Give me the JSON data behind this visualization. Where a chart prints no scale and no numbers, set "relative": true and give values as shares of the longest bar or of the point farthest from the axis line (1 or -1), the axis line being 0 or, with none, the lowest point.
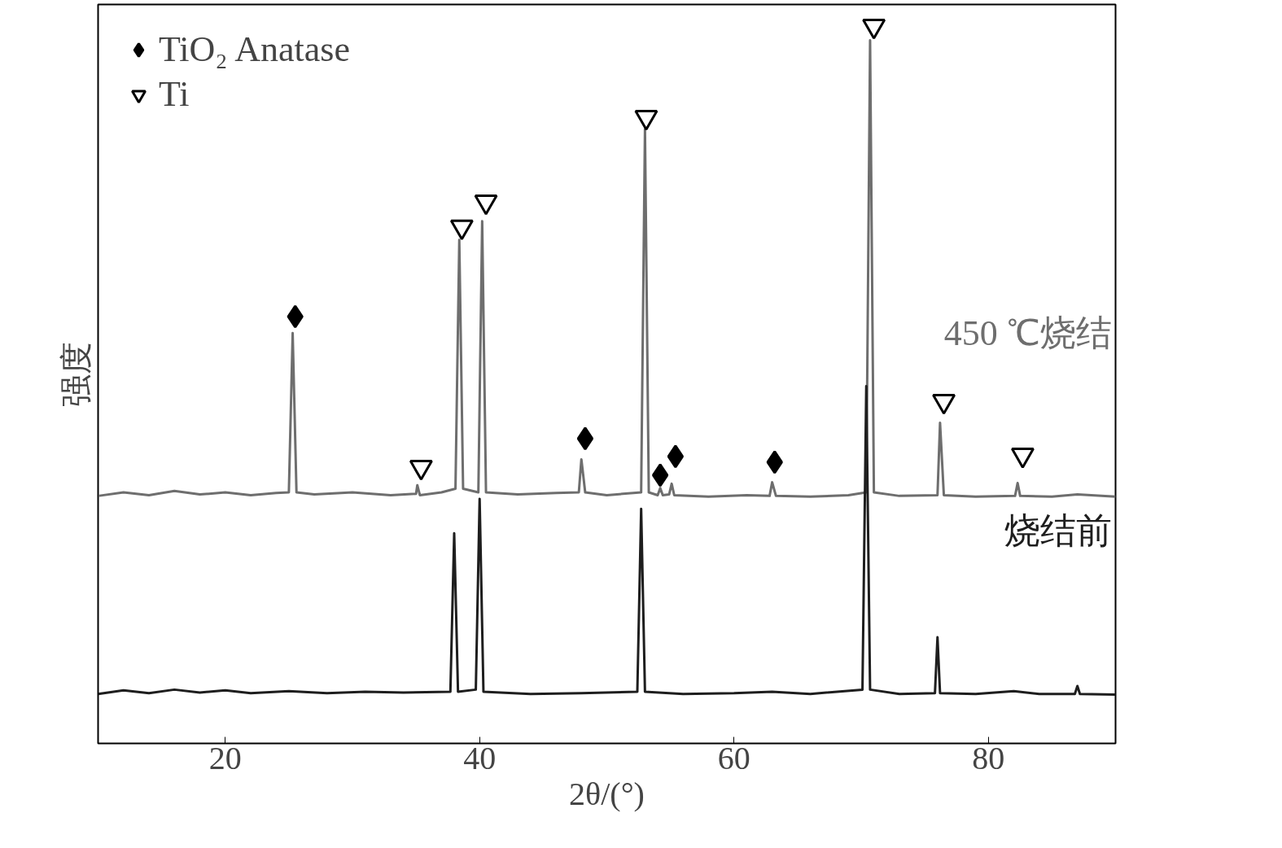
{
  "chart_data": {
    "type": "line",
    "relative": true,
    "xlabel": "2θ/(°)",
    "ylabel": "强度",
    "xlim": [
      10,
      90
    ],
    "xticks": [
      20,
      40,
      60,
      80
    ],
    "tick_labels": "x",
    "grid": false,
    "legend": "top left",
    "line_style": "solid",
    "series": [
      {
        "name": "450 ℃烧结",
        "color": "#6e6e6e",
        "x": [
          10,
          12,
          14,
          16,
          18,
          20,
          22,
          24,
          25.0,
          25.3,
          25.6,
          27,
          30,
          33,
          35.0,
          35.1,
          35.3,
          37,
          38.1,
          38.4,
          38.7,
          39.9,
          40.2,
          40.5,
          43,
          46,
          47.8,
          48.0,
          48.3,
          50,
          52.7,
          53.0,
          53.3,
          54.0,
          54.2,
          54.4,
          54.9,
          55.1,
          55.3,
          58,
          61,
          62.8,
          63.0,
          63.3,
          66,
          69,
          70.4,
          70.7,
          71.0,
          73,
          76.0,
          76.2,
          76.5,
          79,
          82.1,
          82.3,
          82.5,
          85,
          87,
          90
        ],
        "values": [
          0.345,
          0.35,
          0.346,
          0.352,
          0.347,
          0.35,
          0.346,
          0.349,
          0.35,
          0.572,
          0.35,
          0.347,
          0.35,
          0.346,
          0.348,
          0.36,
          0.346,
          0.35,
          0.355,
          0.702,
          0.355,
          0.35,
          0.728,
          0.35,
          0.347,
          0.349,
          0.35,
          0.396,
          0.35,
          0.346,
          0.35,
          0.856,
          0.35,
          0.346,
          0.356,
          0.346,
          0.347,
          0.362,
          0.346,
          0.344,
          0.346,
          0.345,
          0.364,
          0.345,
          0.344,
          0.346,
          0.35,
          0.98,
          0.35,
          0.345,
          0.346,
          0.447,
          0.346,
          0.344,
          0.345,
          0.363,
          0.345,
          0.344,
          0.347,
          0.344
        ]
      },
      {
        "name": "烧结前",
        "color": "#1e1e1e",
        "x": [
          10,
          12,
          14,
          16,
          18,
          20,
          22,
          25,
          28,
          31,
          34,
          37.7,
          38.0,
          38.3,
          39.7,
          40.0,
          40.3,
          44,
          48,
          52.4,
          52.7,
          53.0,
          56,
          60,
          63,
          66,
          70.1,
          70.4,
          70.7,
          73,
          75.8,
          76.0,
          76.2,
          79,
          82,
          84,
          86.8,
          87.0,
          87.2,
          90
        ],
        "values": [
          0.069,
          0.074,
          0.07,
          0.075,
          0.071,
          0.074,
          0.07,
          0.073,
          0.07,
          0.072,
          0.071,
          0.072,
          0.293,
          0.072,
          0.075,
          0.341,
          0.072,
          0.069,
          0.07,
          0.072,
          0.327,
          0.072,
          0.069,
          0.07,
          0.072,
          0.069,
          0.075,
          0.498,
          0.075,
          0.069,
          0.07,
          0.148,
          0.07,
          0.069,
          0.073,
          0.069,
          0.069,
          0.08,
          0.069,
          0.068
        ]
      },
      {
        "name": "TiO₂ Anatase",
        "type": "scatter",
        "marker": "diamond",
        "color": "#000000",
        "x": [
          25.5,
          48.3,
          54.2,
          55.4,
          63.2
        ],
        "values": [
          0.595,
          0.425,
          0.374,
          0.4,
          0.392
        ]
      },
      {
        "name": "Ti",
        "type": "scatter",
        "marker": "triangle",
        "color": "#000000",
        "x": [
          35.4,
          38.6,
          40.5,
          53.1,
          71.0,
          76.5,
          82.7
        ],
        "values": [
          0.385,
          0.72,
          0.755,
          0.873,
          1.0,
          0.477,
          0.402
        ]
      }
    ]
  }
}
